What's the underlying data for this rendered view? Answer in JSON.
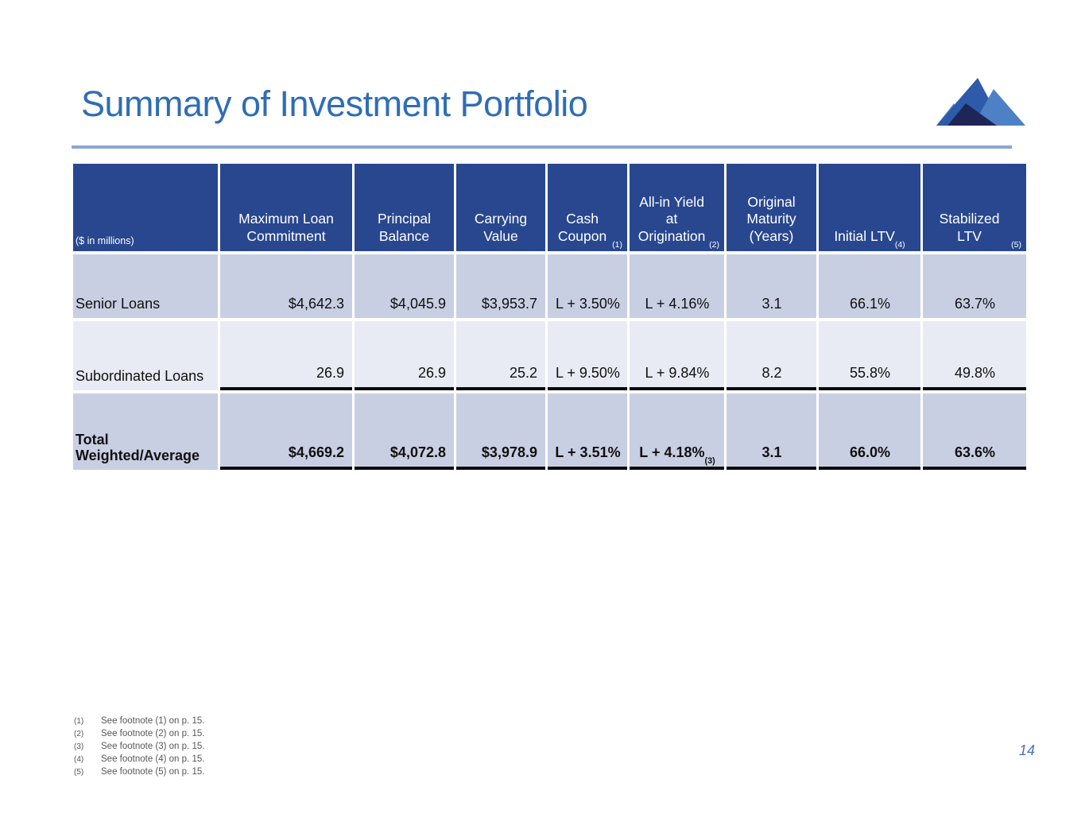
{
  "slide": {
    "title": "Summary of Investment Portfolio",
    "page_number": "14"
  },
  "theme": {
    "title_color": "#2F6DB5",
    "rule_color": "#8AA6D3",
    "header_bg": "#28478F",
    "row_a": "#C9CFE3",
    "row_b": "#E9EBF4",
    "footnote_color": "#575757",
    "page_number_color": "#4674B8",
    "logo_colors": {
      "left_light": "#5E86C5",
      "main_peak": "#2D5BA9",
      "right_peak": "#4D80C4",
      "dark_front": "#1F2557"
    }
  },
  "table": {
    "unit_note": "($ in millions)",
    "columns": [
      {
        "label": "Maximum Loan Commitment",
        "sup": ""
      },
      {
        "label": "Principal Balance",
        "sup": ""
      },
      {
        "label": "Carrying Value",
        "sup": ""
      },
      {
        "label": "Cash Coupon",
        "sup": "(1)"
      },
      {
        "label": "All-in Yield at Origination",
        "sup": "(2)"
      },
      {
        "label": "Original Maturity (Years)",
        "sup": ""
      },
      {
        "label": "Initial LTV",
        "sup": "(4)"
      },
      {
        "label": "Stabilized LTV",
        "sup": "(5)"
      }
    ],
    "rows": [
      {
        "label_lines": [
          "Senior Loans"
        ],
        "bold": false,
        "rule_below": false,
        "values": [
          "$4,642.3",
          "$4,045.9",
          "$3,953.7",
          "L + 3.50%",
          "L + 4.16%",
          "3.1",
          "66.1%",
          "63.7%"
        ]
      },
      {
        "label_lines": [
          "Subordinated Loans"
        ],
        "bold": false,
        "rule_below": true,
        "values": [
          "26.9",
          "26.9",
          "25.2",
          "L + 9.50%",
          "L + 9.84%",
          "8.2",
          "55.8%",
          "49.8%"
        ]
      },
      {
        "label_lines": [
          "Total",
          "Weighted/Average"
        ],
        "bold": true,
        "rule_below": true,
        "values": [
          "$4,669.2",
          "$4,072.8",
          "$3,978.9",
          "L + 3.51%",
          {
            "text": "L + 4.18%",
            "sup": "(3)"
          },
          "3.1",
          "66.0%",
          "63.6%"
        ]
      }
    ]
  },
  "footnotes": [
    {
      "marker": "(1)",
      "text": "See footnote (1) on p. 15."
    },
    {
      "marker": "(2)",
      "text": "See footnote (2) on p. 15."
    },
    {
      "marker": "(3)",
      "text": "See footnote (3) on p. 15."
    },
    {
      "marker": "(4)",
      "text": "See footnote (4) on p. 15."
    },
    {
      "marker": "(5)",
      "text": "See footnote (5) on p. 15."
    }
  ]
}
